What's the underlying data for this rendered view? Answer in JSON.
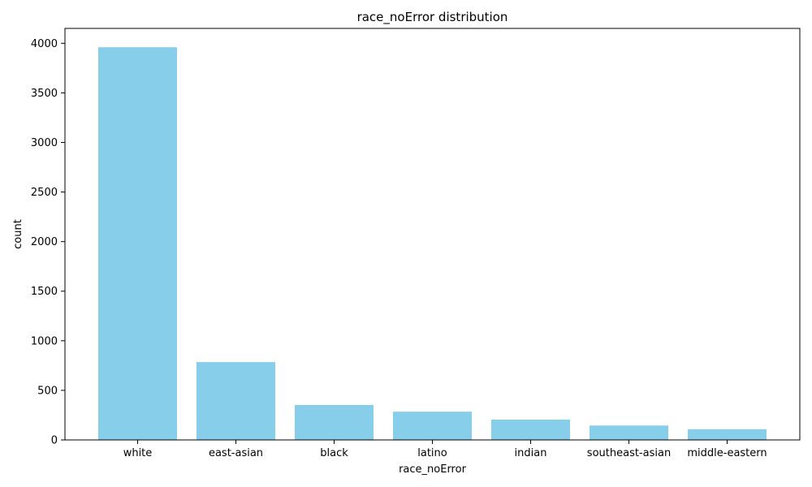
{
  "chart_data": {
    "type": "bar",
    "title": "race_noError distribution",
    "xlabel": "race_noError",
    "ylabel": "count",
    "categories": [
      "white",
      "east-asian",
      "black",
      "latino",
      "indian",
      "southeast-asian",
      "middle-eastern"
    ],
    "values": [
      3960,
      785,
      352,
      285,
      205,
      145,
      108
    ],
    "ylim": [
      0,
      4150
    ],
    "yticks": [
      0,
      500,
      1000,
      1500,
      2000,
      2500,
      3000,
      3500,
      4000
    ],
    "bar_color": "#87CEEB",
    "grid": false,
    "legend": "none"
  }
}
